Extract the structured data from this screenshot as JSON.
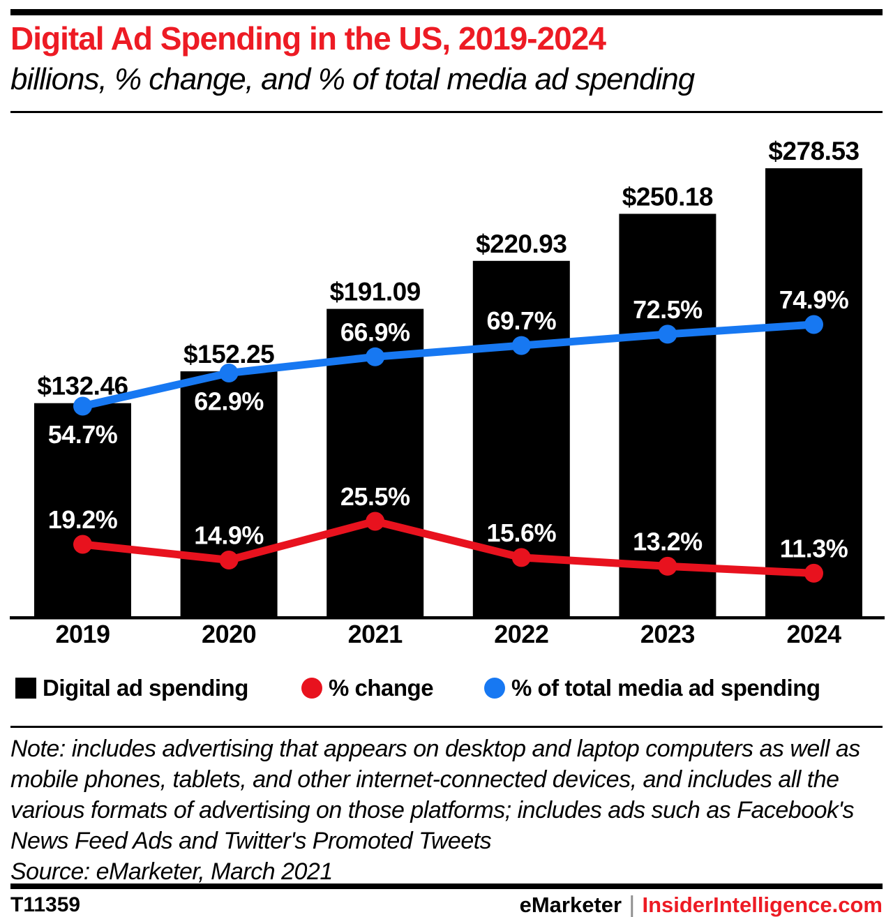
{
  "header": {
    "title": "Digital Ad Spending in the US, 2019-2024",
    "subtitle": "billions, % change, and % of total media ad spending",
    "title_color": "#ed1b24"
  },
  "chart_data": {
    "type": "bar",
    "title": "Digital Ad Spending in the US, 2019-2024",
    "subtitle": "billions, % change, and % of total media ad spending",
    "categories": [
      "2019",
      "2020",
      "2021",
      "2022",
      "2023",
      "2024"
    ],
    "series": [
      {
        "name": "Digital ad spending",
        "type": "bar",
        "unit": "billions of US dollars",
        "values": [
          132.46,
          152.25,
          191.09,
          220.93,
          250.18,
          278.53
        ],
        "labels": [
          "$132.46",
          "$152.25",
          "$191.09",
          "$220.93",
          "$250.18",
          "$278.53"
        ],
        "color": "#000000"
      },
      {
        "name": "% change",
        "type": "line",
        "unit": "percent",
        "values": [
          19.2,
          14.9,
          25.5,
          15.6,
          13.2,
          11.3
        ],
        "labels": [
          "19.2%",
          "14.9%",
          "25.5%",
          "15.6%",
          "13.2%",
          "11.3%"
        ],
        "color": "#e8121e",
        "label_side": [
          "above",
          "above",
          "above",
          "above",
          "above",
          "above"
        ]
      },
      {
        "name": "% of total media ad spending",
        "type": "line",
        "unit": "percent",
        "values": [
          54.7,
          62.9,
          66.9,
          69.7,
          72.5,
          74.9
        ],
        "labels": [
          "54.7%",
          "62.9%",
          "66.9%",
          "69.7%",
          "72.5%",
          "74.9%"
        ],
        "color": "#1778f2",
        "label_side": [
          "below",
          "below",
          "above",
          "above",
          "above",
          "above"
        ]
      }
    ],
    "ylim": [
      0,
      300
    ],
    "grid": false,
    "axis_line_color": "#000000",
    "legend_position": "bottom"
  },
  "legend": {
    "items": [
      {
        "label": "Digital ad spending",
        "marker": "square",
        "color": "#000000"
      },
      {
        "label": "% change",
        "marker": "circle",
        "color": "#e8121e"
      },
      {
        "label": "% of total media ad spending",
        "marker": "circle",
        "color": "#1778f2"
      }
    ]
  },
  "note": "Note: includes advertising that appears on desktop and laptop computers as well as mobile phones, tablets, and other internet-connected devices, and includes all the various formats of advertising on those platforms; includes ads such as Facebook's News Feed Ads and Twitter's Promoted Tweets",
  "source": "Source: eMarketer, March 2021",
  "footer": {
    "chart_id": "T11359",
    "brand": "eMarketer",
    "separator": "|",
    "site": "InsiderIntelligence.com",
    "site_color": "#ed1b24"
  }
}
